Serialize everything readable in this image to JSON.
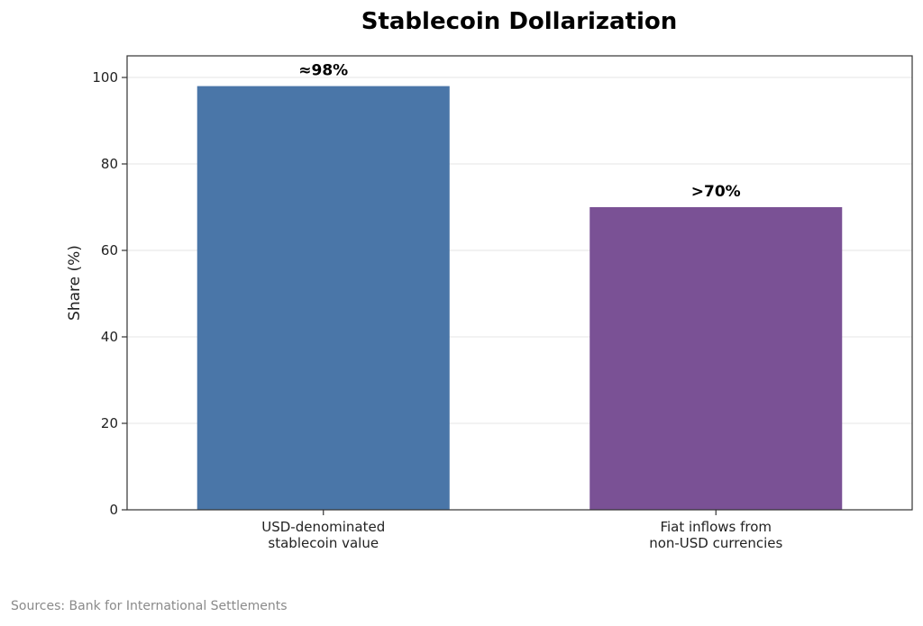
{
  "chart_data": {
    "type": "bar",
    "title": "Stablecoin Dollarization",
    "ylabel": "Share (%)",
    "xlabel": "",
    "ylim": [
      0,
      105
    ],
    "yticks": [
      0,
      20,
      40,
      60,
      80,
      100
    ],
    "categories": [
      [
        "USD-denominated",
        "stablecoin value"
      ],
      [
        "Fiat inflows from",
        "non-USD currencies"
      ]
    ],
    "values": [
      98,
      70
    ],
    "data_labels": [
      "≈98%",
      ">70%"
    ],
    "colors": [
      "#4a76a8",
      "#7a5195"
    ],
    "grid": "horizontal"
  },
  "source_note": "Sources: Bank for International Settlements"
}
